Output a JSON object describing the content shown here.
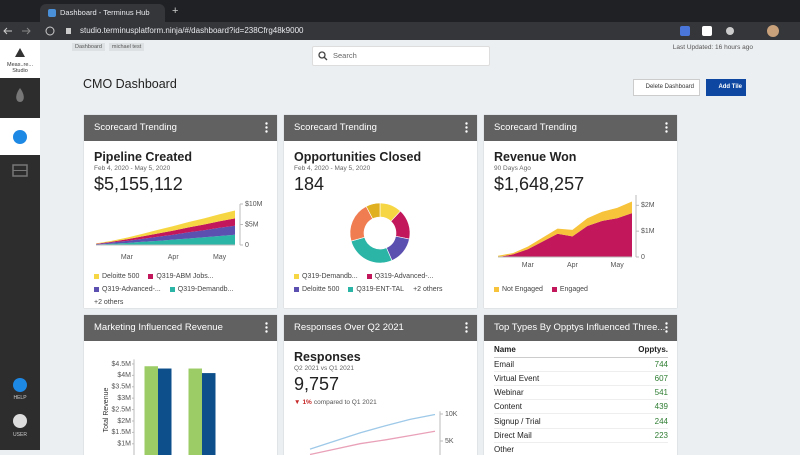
{
  "browser": {
    "tab_title": "Dashboard - Terminus Hub",
    "url": "studio.terminusplatform.ninja/#/dashboard?id=238Cfrg48k9000"
  },
  "sidebar": {
    "brand": "Meas..re...",
    "brand_sub": "Studio",
    "help": "HELP",
    "user": "USER"
  },
  "header": {
    "breadcrumbs": [
      "Dashboard",
      "michael test"
    ],
    "search_placeholder": "Search",
    "last_updated": "Last Updated: 16 hours ago"
  },
  "dashboard": {
    "title": "CMO Dashboard",
    "buttons": [
      "Delete Dashboard",
      "Add Tile"
    ]
  },
  "tiles": [
    {
      "header": "Scorecard Trending",
      "metric": "Pipeline Created",
      "subtitle": "Feb 4, 2020 - May 5, 2020",
      "value": "$5,155,112",
      "chart": {
        "type": "area",
        "categories": [
          null,
          null,
          "Mar",
          null,
          null,
          "Apr",
          null,
          null,
          "May",
          null
        ],
        "series": [
          {
            "name": "Deloitte 500",
            "color": "#f6d743",
            "values": [
              0.1,
              0.2,
              0.4,
              0.6,
              0.9,
              1.1,
              1.3,
              1.5,
              1.7,
              1.9
            ]
          },
          {
            "name": "Q319-ABM Jobs...",
            "color": "#c2185b",
            "values": [
              0.1,
              0.2,
              0.4,
              0.6,
              0.8,
              1.0,
              1.2,
              1.4,
              1.6,
              1.8
            ]
          },
          {
            "name": "Q319-Advanced-...",
            "color": "#5b4fb0",
            "values": [
              0.1,
              0.3,
              0.5,
              0.7,
              1.0,
              1.2,
              1.5,
              1.7,
              2.0,
              2.2
            ]
          },
          {
            "name": "Q319-Demandb...",
            "color": "#2bb5a7",
            "values": [
              0.1,
              0.3,
              0.5,
              0.8,
              1.0,
              1.3,
              1.6,
              1.9,
              2.2,
              2.5
            ]
          }
        ],
        "ylim": [
          0,
          10
        ],
        "yticks": [
          0,
          {
            "value": 5,
            "label": "$5M"
          },
          {
            "value": 10,
            "label": "$10M"
          }
        ],
        "legend_extra": "+2 others"
      }
    },
    {
      "header": "Scorecard Trending",
      "metric": "Opportunities Closed",
      "subtitle": "Feb 4, 2020 - May 5, 2020",
      "value": "184",
      "chart": {
        "type": "pie",
        "labels": [
          "Q319-Demandb...",
          "Q319-Advanced-...",
          "Deloitte 500",
          "Q319-ENT-TAL",
          null,
          null
        ],
        "values": [
          22,
          30,
          28,
          50,
          40,
          14
        ],
        "colors": [
          "#f6d743",
          "#c2185b",
          "#5b4fb0",
          "#2bb5a7",
          "#f07c52",
          "#e0b020"
        ],
        "legend_extra": "+2 others"
      }
    },
    {
      "header": "Scorecard Trending",
      "metric": "Revenue Won",
      "subtitle": "90 Days Ago",
      "value": "$1,648,257",
      "chart": {
        "type": "area",
        "categories": [
          null,
          null,
          "Mar",
          null,
          null,
          "Apr",
          null,
          null,
          "May",
          null
        ],
        "series": [
          {
            "name": "Not Engaged",
            "color": "#f6c33a",
            "values": [
              0.05,
              0.05,
              0.1,
              0.15,
              0.2,
              0.25,
              0.3,
              0.35,
              0.4,
              0.45
            ]
          },
          {
            "name": "Engaged",
            "color": "#c2185b",
            "values": [
              0,
              0.1,
              0.3,
              0.6,
              0.9,
              0.8,
              1.2,
              1.4,
              1.5,
              1.7
            ]
          }
        ],
        "ylim": [
          0,
          2.4
        ],
        "yticks": [
          0,
          {
            "value": 1,
            "label": "$1M"
          },
          {
            "value": 2,
            "label": "$2M"
          }
        ]
      }
    },
    {
      "header": "Marketing Influenced Revenue",
      "chart": {
        "type": "bar",
        "categories": [
          null,
          null
        ],
        "y_label": "Total Revenue",
        "series": [
          {
            "color": "#9ccc65",
            "values": [
              4.4,
              4.3
            ]
          },
          {
            "color": "#0d4f8b",
            "values": [
              4.3,
              4.1
            ]
          }
        ],
        "ylim": [
          0,
          4.7
        ],
        "yticks": [
          {
            "value": 1,
            "label": "$1M"
          },
          {
            "value": 1.5,
            "label": "$1.5M"
          },
          {
            "value": 2,
            "label": "$2M"
          },
          {
            "value": 2.5,
            "label": "$2.5M"
          },
          {
            "value": 3,
            "label": "$3M"
          },
          {
            "value": 3.5,
            "label": "$3.5M"
          },
          {
            "value": 4,
            "label": "$4M"
          },
          {
            "value": 4.5,
            "label": "$4.5M"
          }
        ]
      }
    },
    {
      "header": "Responses Over Q2 2021",
      "metric": "Responses",
      "subtitle": "Q2 2021 vs Q1 2021",
      "value": "9,757",
      "delta": {
        "symbol": "▼",
        "change": "1%",
        "text": "compared to Q1 2021"
      },
      "chart": {
        "type": "line",
        "categories": [
          null,
          null,
          null,
          null,
          null,
          null
        ],
        "series": [
          {
            "color": "#9ec9e8",
            "values": [
              3.5,
              5.0,
              6.5,
              7.8,
              9.0,
              9.9
            ]
          },
          {
            "color": "#e9a1b8",
            "values": [
              2.5,
              3.5,
              4.5,
              5.2,
              6.0,
              6.8
            ]
          }
        ],
        "ylim": [
          0,
          10.5
        ],
        "yticks": [
          {
            "value": 5,
            "label": "5K"
          },
          {
            "value": 10,
            "label": "10K"
          }
        ]
      }
    },
    {
      "header": "Top Types By Opptys Influenced Three...",
      "table": {
        "columns": [
          "Name",
          "Opptys."
        ],
        "rows": [
          [
            "Email",
            744
          ],
          [
            "Virtual Event",
            607
          ],
          [
            "Webinar",
            541
          ],
          [
            "Content",
            439
          ],
          [
            "Signup / Trial",
            244
          ],
          [
            "Direct Mail",
            223
          ],
          [
            "Other"
          ]
        ]
      }
    }
  ]
}
